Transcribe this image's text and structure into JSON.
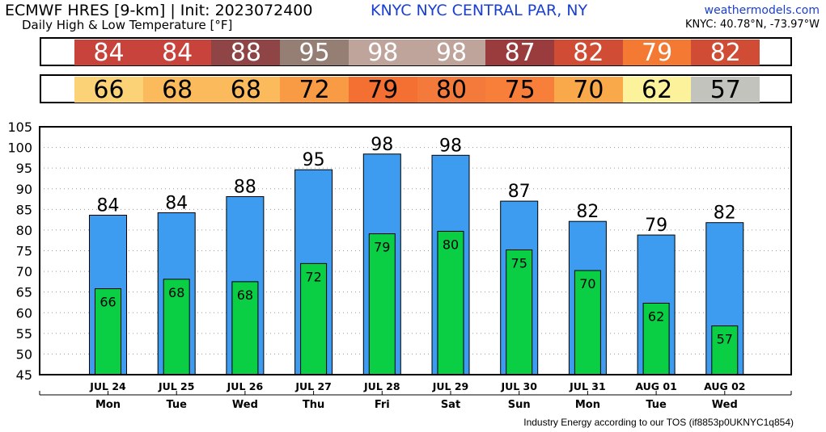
{
  "header": {
    "title": "ECMWF HRES [9-km] | Init: 2023072400",
    "station": "KNYC NYC CENTRAL PAR, NY",
    "site": "weathermodels.com",
    "subtitle": "Daily High & Low Temperature [°F]",
    "coords": "KNYC: 40.78°N, -73.97°W"
  },
  "high_strip": {
    "values": [
      "84",
      "84",
      "88",
      "95",
      "98",
      "98",
      "87",
      "82",
      "79",
      "82"
    ],
    "colors": [
      "#c8433b",
      "#c8433b",
      "#8f4545",
      "#957f75",
      "#bea49b",
      "#bea49b",
      "#9a3b3e",
      "#d04c35",
      "#f47a34",
      "#d04c35"
    ]
  },
  "low_strip": {
    "values": [
      "66",
      "68",
      "68",
      "72",
      "79",
      "80",
      "75",
      "70",
      "62",
      "57"
    ],
    "colors": [
      "#fcd276",
      "#fbbb5c",
      "#fbbb5c",
      "#f99a45",
      "#f47032",
      "#f47a3c",
      "#f77f3a",
      "#f9a84a",
      "#fdf29c",
      "#c3c3bd"
    ]
  },
  "chart_data": {
    "type": "bar",
    "categories": [
      "JUL 24",
      "JUL 25",
      "JUL 26",
      "JUL 27",
      "JUL 28",
      "JUL 29",
      "JUL 30",
      "JUL 31",
      "AUG 01",
      "AUG 02"
    ],
    "weekdays": [
      "Mon",
      "Tue",
      "Wed",
      "Thu",
      "Fri",
      "Sat",
      "Sun",
      "Mon",
      "Tue",
      "Wed"
    ],
    "series": [
      {
        "values": [
          83.6,
          84.2,
          88.1,
          94.6,
          98.4,
          98.1,
          87.0,
          82.1,
          78.8,
          81.8
        ],
        "labels": [
          "84",
          "84",
          "88",
          "95",
          "98",
          "98",
          "87",
          "82",
          "79",
          "82"
        ],
        "color": "#3d9cf0"
      },
      {
        "values": [
          65.8,
          68.1,
          67.5,
          71.9,
          79.1,
          79.7,
          75.2,
          70.2,
          62.3,
          56.8
        ],
        "labels": [
          "66",
          "68",
          "68",
          "72",
          "79",
          "80",
          "75",
          "70",
          "62",
          "57"
        ],
        "color": "#0acf45"
      }
    ],
    "ylim": [
      45,
      105
    ],
    "yticks": [
      "45",
      "50",
      "55",
      "60",
      "65",
      "70",
      "75",
      "80",
      "85",
      "90",
      "95",
      "100",
      "105"
    ],
    "grid": true
  },
  "footer": "Industry Energy according to our TOS (if8853p0UKNYC1q854)"
}
